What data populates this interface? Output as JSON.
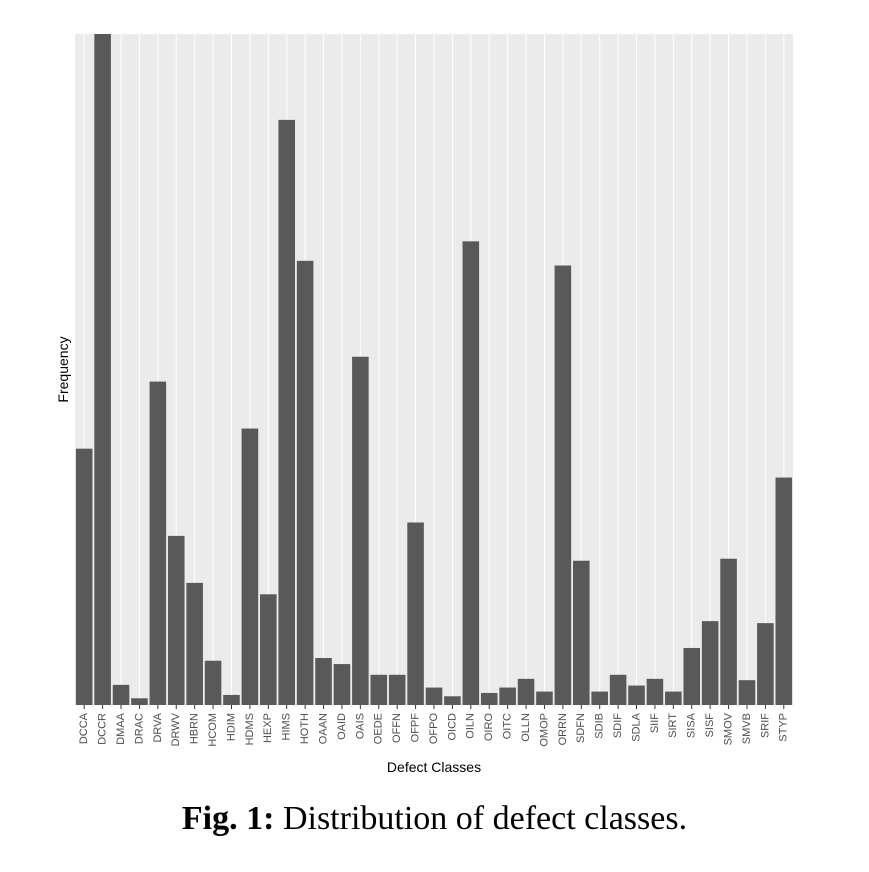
{
  "chart_data": {
    "type": "bar",
    "title": "",
    "xlabel": "Defect Classes",
    "ylabel": "Frequency",
    "ylim": [
      0,
      1000
    ],
    "grid": true,
    "categories": [
      "DCCA",
      "DCCR",
      "DMAA",
      "DRAC",
      "DRVA",
      "DRWV",
      "HBRN",
      "HCOM",
      "HDIM",
      "HDMS",
      "HEXP",
      "HIMS",
      "HOTH",
      "OAAN",
      "OAID",
      "OAIS",
      "OEDE",
      "OFFN",
      "OFPF",
      "OFPO",
      "OICD",
      "OILN",
      "OIRO",
      "OITC",
      "OLLN",
      "OMOP",
      "ORRN",
      "SDFN",
      "SDIB",
      "SDIF",
      "SDLA",
      "SIIF",
      "SIRT",
      "SISA",
      "SISF",
      "SMOV",
      "SMVB",
      "SRIF",
      "STYP"
    ],
    "values": [
      382,
      1000,
      30,
      10,
      482,
      252,
      182,
      66,
      15,
      412,
      165,
      872,
      662,
      70,
      61,
      519,
      45,
      45,
      272,
      26,
      13,
      691,
      18,
      26,
      39,
      20,
      655,
      215,
      20,
      45,
      29,
      39,
      20,
      85,
      125,
      218,
      37,
      122,
      339
    ],
    "colors": {
      "bar": "#595959",
      "panel": "#ebebeb",
      "grid": "#ffffff"
    }
  },
  "caption": {
    "label": "Fig. 1:",
    "text": " Distribution of defect classes."
  }
}
